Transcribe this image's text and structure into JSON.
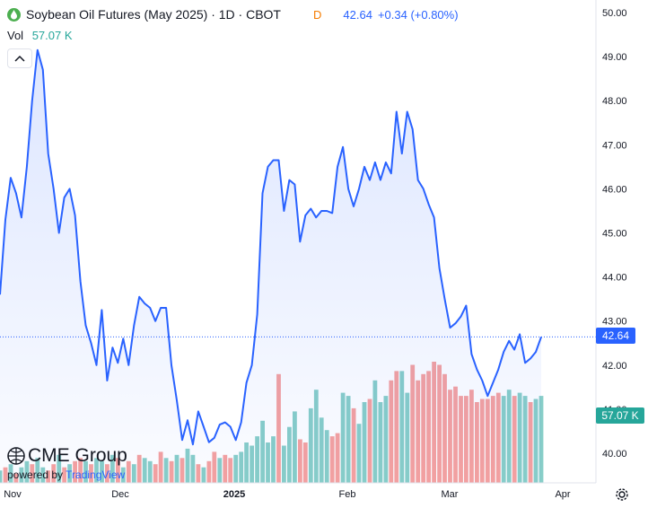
{
  "header": {
    "title": "Soybean Oil Futures (May 2025) · 1D · CBOT",
    "d_label": "D",
    "price": "42.64",
    "change": "+0.34 (+0.80%)"
  },
  "volume": {
    "label": "Vol",
    "value": "57.07 K"
  },
  "watermark": {
    "brand": "CME Group",
    "powered_prefix": "powered by ",
    "powered_name": "TradingView"
  },
  "colors": {
    "line": "#2962ff",
    "vol_up": "#26a69a",
    "vol_down": "#ef5350",
    "price_tag": "#2962ff",
    "vol_tag": "#26a69a"
  },
  "icons": [
    "logo-icon",
    "chevron-up-icon",
    "cme-globe-icon",
    "settings-icon"
  ],
  "chart_data": {
    "type": "line",
    "title": "Soybean Oil Futures (May 2025) · 1D · CBOT",
    "ylim": [
      39.6,
      50.2
    ],
    "y_ticks": [
      40.0,
      41.0,
      42.0,
      43.0,
      44.0,
      45.0,
      46.0,
      47.0,
      48.0,
      49.0,
      50.0
    ],
    "x_ticks": [
      "Nov",
      "Dec",
      "2025",
      "Feb",
      "Mar",
      "Apr"
    ],
    "last_price": "42.64",
    "last_volume": "57.07 K",
    "grid": false,
    "series": [
      {
        "values": [
          43.6,
          45.3,
          46.25,
          45.9,
          45.35,
          46.5,
          48.0,
          49.15,
          48.7,
          46.8,
          46.0,
          45.0,
          45.8,
          46.0,
          45.4,
          43.9,
          42.9,
          42.5,
          42.0,
          43.25,
          41.65,
          42.4,
          42.05,
          42.6,
          42.0,
          42.9,
          43.55,
          43.4,
          43.3,
          43.0,
          43.3,
          43.3,
          42.0,
          41.2,
          40.3,
          40.75,
          40.2,
          40.95,
          40.6,
          40.25,
          40.35,
          40.65,
          40.7,
          40.6,
          40.3,
          40.7,
          41.6,
          42.0,
          43.15,
          45.9,
          46.5,
          46.65,
          46.65,
          45.5,
          46.2,
          46.1,
          44.8,
          45.4,
          45.55,
          45.35,
          45.5,
          45.5,
          45.45,
          46.5,
          46.95,
          46.0,
          45.6,
          46.0,
          46.5,
          46.2,
          46.6,
          46.2,
          46.6,
          46.35,
          47.75,
          46.8,
          47.75,
          47.35,
          46.2,
          46.0,
          45.65,
          45.35,
          44.2,
          43.5,
          42.85,
          42.95,
          43.1,
          43.35,
          42.25,
          41.9,
          41.65,
          41.3,
          41.6,
          41.9,
          42.3,
          42.55,
          42.35,
          42.7,
          42.05,
          42.15,
          42.3,
          42.64
        ]
      }
    ],
    "volume": {
      "up": [
        true,
        false,
        true,
        false,
        true,
        true,
        false,
        true,
        true,
        false,
        false,
        true,
        false,
        true,
        false,
        false,
        true,
        false,
        true,
        true,
        false,
        true,
        false,
        true,
        false,
        true,
        false,
        true,
        true,
        false,
        false,
        true,
        false,
        true,
        false,
        true,
        true,
        false,
        true,
        false,
        false,
        true,
        false,
        false,
        true,
        true,
        true,
        true,
        true,
        true,
        true,
        true,
        false,
        true,
        true,
        true,
        false,
        false,
        true,
        true,
        true,
        true,
        false,
        false,
        true,
        true,
        false,
        true,
        true,
        false,
        true,
        true,
        true,
        false,
        false,
        true,
        true,
        false,
        false,
        false,
        false,
        false,
        false,
        false,
        false,
        false,
        false,
        false,
        false,
        false,
        false,
        false,
        false,
        false,
        true,
        true,
        false,
        true,
        true,
        false,
        true,
        true
      ],
      "values": [
        4,
        5,
        6,
        3,
        5,
        7,
        6,
        8,
        5,
        4,
        6,
        9,
        5,
        6,
        7,
        8,
        7,
        6,
        8,
        7,
        6,
        9,
        8,
        5,
        7,
        6,
        9,
        8,
        7,
        6,
        10,
        8,
        7,
        9,
        8,
        11,
        9,
        6,
        5,
        7,
        10,
        8,
        9,
        8,
        9,
        10,
        13,
        12,
        15,
        20,
        13,
        15,
        35,
        12,
        18,
        23,
        14,
        13,
        24,
        30,
        21,
        17,
        15,
        16,
        29,
        28,
        24,
        19,
        26,
        27,
        33,
        26,
        28,
        33,
        36,
        36,
        29,
        38,
        33,
        35,
        36,
        39,
        38,
        35,
        30,
        31,
        28,
        28,
        30,
        26,
        27,
        27,
        28,
        29,
        28,
        30,
        28,
        29,
        28,
        26,
        27,
        28
      ]
    }
  }
}
